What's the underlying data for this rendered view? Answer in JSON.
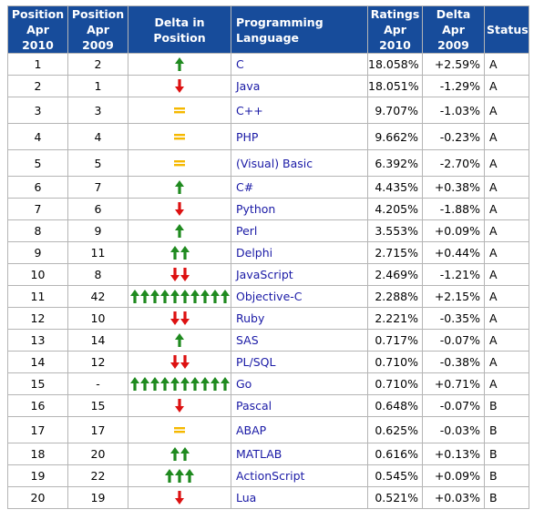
{
  "headers": {
    "pos_2010": "Position Apr 2010",
    "pos_2009": "Position Apr 2009",
    "delta_pos": "Delta in Position",
    "language": "Programming Language",
    "ratings": "Ratings Apr 2010",
    "delta_rating": "Delta Apr 2009",
    "status": "Status"
  },
  "colors": {
    "header_bg": "#174c9b",
    "up_arrow": "#1f8a1f",
    "down_arrow": "#dd1111",
    "equal": "#f5b800",
    "link": "#1a1aa6"
  },
  "icons": {
    "up": "green-up-arrow-icon",
    "down": "red-down-arrow-icon",
    "same": "yellow-equals-icon"
  },
  "rows": [
    {
      "pos2010": "1",
      "pos2009": "2",
      "delta_type": "up",
      "delta_count": 1,
      "language": "C",
      "rating": "18.058%",
      "delta": "+2.59%",
      "status": "A"
    },
    {
      "pos2010": "2",
      "pos2009": "1",
      "delta_type": "down",
      "delta_count": 1,
      "language": "Java",
      "rating": "18.051%",
      "delta": "-1.29%",
      "status": "A"
    },
    {
      "pos2010": "3",
      "pos2009": "3",
      "delta_type": "same",
      "delta_count": 1,
      "language": "C++",
      "rating": "9.707%",
      "delta": "-1.03%",
      "status": "A"
    },
    {
      "pos2010": "4",
      "pos2009": "4",
      "delta_type": "same",
      "delta_count": 1,
      "language": "PHP",
      "rating": "9.662%",
      "delta": "-0.23%",
      "status": "A"
    },
    {
      "pos2010": "5",
      "pos2009": "5",
      "delta_type": "same",
      "delta_count": 1,
      "language": "(Visual) Basic",
      "rating": "6.392%",
      "delta": "-2.70%",
      "status": "A"
    },
    {
      "pos2010": "6",
      "pos2009": "7",
      "delta_type": "up",
      "delta_count": 1,
      "language": "C#",
      "rating": "4.435%",
      "delta": "+0.38%",
      "status": "A"
    },
    {
      "pos2010": "7",
      "pos2009": "6",
      "delta_type": "down",
      "delta_count": 1,
      "language": "Python",
      "rating": "4.205%",
      "delta": "-1.88%",
      "status": "A"
    },
    {
      "pos2010": "8",
      "pos2009": "9",
      "delta_type": "up",
      "delta_count": 1,
      "language": "Perl",
      "rating": "3.553%",
      "delta": "+0.09%",
      "status": "A"
    },
    {
      "pos2010": "9",
      "pos2009": "11",
      "delta_type": "up",
      "delta_count": 2,
      "language": "Delphi",
      "rating": "2.715%",
      "delta": "+0.44%",
      "status": "A"
    },
    {
      "pos2010": "10",
      "pos2009": "8",
      "delta_type": "down",
      "delta_count": 2,
      "language": "JavaScript",
      "rating": "2.469%",
      "delta": "-1.21%",
      "status": "A"
    },
    {
      "pos2010": "11",
      "pos2009": "42",
      "delta_type": "up",
      "delta_count": 10,
      "language": "Objective-C",
      "rating": "2.288%",
      "delta": "+2.15%",
      "status": "A"
    },
    {
      "pos2010": "12",
      "pos2009": "10",
      "delta_type": "down",
      "delta_count": 2,
      "language": "Ruby",
      "rating": "2.221%",
      "delta": "-0.35%",
      "status": "A"
    },
    {
      "pos2010": "13",
      "pos2009": "14",
      "delta_type": "up",
      "delta_count": 1,
      "language": "SAS",
      "rating": "0.717%",
      "delta": "-0.07%",
      "status": "A"
    },
    {
      "pos2010": "14",
      "pos2009": "12",
      "delta_type": "down",
      "delta_count": 2,
      "language": "PL/SQL",
      "rating": "0.710%",
      "delta": "-0.38%",
      "status": "A"
    },
    {
      "pos2010": "15",
      "pos2009": "-",
      "delta_type": "up",
      "delta_count": 10,
      "language": "Go",
      "rating": "0.710%",
      "delta": "+0.71%",
      "status": "A"
    },
    {
      "pos2010": "16",
      "pos2009": "15",
      "delta_type": "down",
      "delta_count": 1,
      "language": "Pascal",
      "rating": "0.648%",
      "delta": "-0.07%",
      "status": "B"
    },
    {
      "pos2010": "17",
      "pos2009": "17",
      "delta_type": "same",
      "delta_count": 1,
      "language": "ABAP",
      "rating": "0.625%",
      "delta": "-0.03%",
      "status": "B"
    },
    {
      "pos2010": "18",
      "pos2009": "20",
      "delta_type": "up",
      "delta_count": 2,
      "language": "MATLAB",
      "rating": "0.616%",
      "delta": "+0.13%",
      "status": "B"
    },
    {
      "pos2010": "19",
      "pos2009": "22",
      "delta_type": "up",
      "delta_count": 3,
      "language": "ActionScript",
      "rating": "0.545%",
      "delta": "+0.09%",
      "status": "B"
    },
    {
      "pos2010": "20",
      "pos2009": "19",
      "delta_type": "down",
      "delta_count": 1,
      "language": "Lua",
      "rating": "0.521%",
      "delta": "+0.03%",
      "status": "B"
    }
  ]
}
